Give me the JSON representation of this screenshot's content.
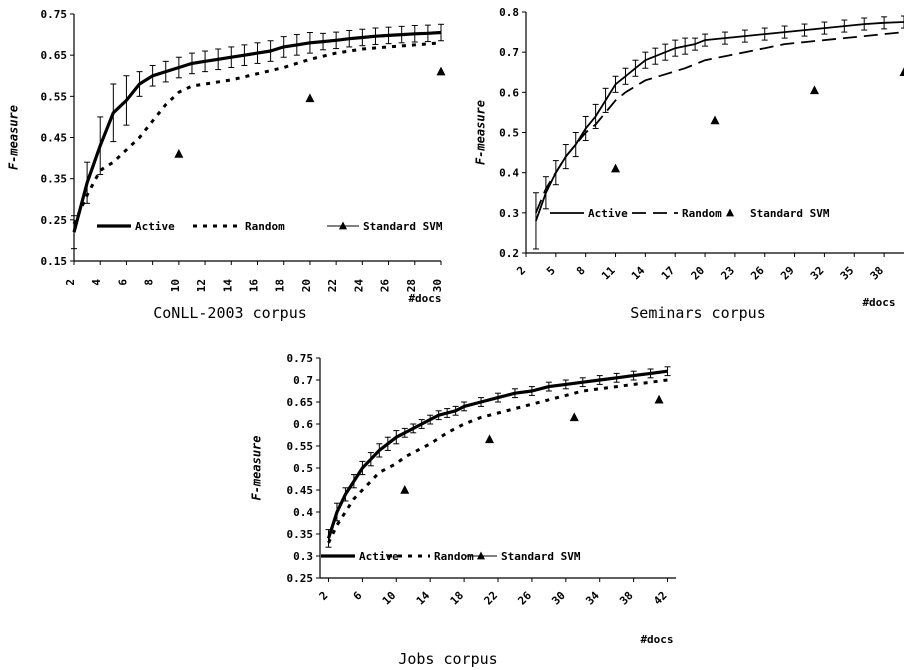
{
  "figure": {
    "background": "#ffffff",
    "ink": "#000000"
  },
  "chart_data": [
    {
      "type": "line",
      "caption": "CoNLL-2003 corpus",
      "ylabel": "F-measure",
      "xlabel": "#docs",
      "ylim": [
        0.15,
        0.75
      ],
      "yticks": [
        0.15,
        0.25,
        0.35,
        0.45,
        0.55,
        0.65,
        0.75
      ],
      "ytick_labels": [
        "0.15",
        "0.25",
        "0.35",
        "0.45",
        "0.55",
        "0.65",
        "0.75"
      ],
      "xlim": [
        2,
        30
      ],
      "xticks": [
        2,
        4,
        6,
        8,
        10,
        12,
        14,
        16,
        18,
        20,
        22,
        24,
        26,
        28,
        30
      ],
      "xtick_labels": [
        "2",
        "4",
        "6",
        "8",
        "10",
        "12",
        "14",
        "16",
        "18",
        "20",
        "22",
        "24",
        "26",
        "28",
        "30"
      ],
      "xtick_rotate": -90,
      "legend_position": "bottom",
      "series": [
        {
          "name": "Active",
          "style": "thick-solid",
          "x": [
            2,
            3,
            4,
            5,
            6,
            7,
            8,
            9,
            10,
            11,
            12,
            13,
            14,
            15,
            16,
            17,
            18,
            19,
            20,
            21,
            22,
            23,
            24,
            25,
            26,
            27,
            28,
            29,
            30
          ],
          "y": [
            0.22,
            0.34,
            0.43,
            0.51,
            0.54,
            0.58,
            0.6,
            0.61,
            0.62,
            0.63,
            0.635,
            0.64,
            0.645,
            0.65,
            0.655,
            0.66,
            0.67,
            0.675,
            0.68,
            0.683,
            0.686,
            0.69,
            0.693,
            0.696,
            0.698,
            0.7,
            0.702,
            0.703,
            0.705
          ],
          "err": [
            0.04,
            0.05,
            0.07,
            0.07,
            0.06,
            0.03,
            0.025,
            0.025,
            0.025,
            0.025,
            0.025,
            0.025,
            0.025,
            0.025,
            0.025,
            0.025,
            0.025,
            0.025,
            0.025,
            0.02,
            0.02,
            0.02,
            0.02,
            0.02,
            0.02,
            0.02,
            0.02,
            0.02,
            0.02
          ]
        },
        {
          "name": "Random",
          "style": "thick-dashed",
          "x": [
            2,
            3,
            4,
            5,
            6,
            7,
            8,
            9,
            10,
            11,
            12,
            14,
            16,
            18,
            20,
            22,
            24,
            26,
            28,
            30
          ],
          "y": [
            0.24,
            0.31,
            0.37,
            0.39,
            0.42,
            0.45,
            0.49,
            0.53,
            0.56,
            0.575,
            0.58,
            0.59,
            0.605,
            0.62,
            0.64,
            0.655,
            0.665,
            0.67,
            0.675,
            0.68
          ]
        },
        {
          "name": "Standard SVM",
          "style": "triangle",
          "x": [
            10,
            20,
            30
          ],
          "y": [
            0.41,
            0.545,
            0.61
          ]
        }
      ]
    },
    {
      "type": "line",
      "caption": "Seminars corpus",
      "ylabel": "F-measure",
      "xlabel": "#docs",
      "ylim": [
        0.2,
        0.8
      ],
      "yticks": [
        0.2,
        0.3,
        0.4,
        0.5,
        0.6,
        0.7,
        0.8
      ],
      "ytick_labels": [
        "0.2",
        "0.3",
        "0.4",
        "0.5",
        "0.6",
        "0.7",
        "0.8"
      ],
      "xlim": [
        2,
        40
      ],
      "xticks": [
        2,
        5,
        8,
        11,
        14,
        17,
        20,
        23,
        26,
        29,
        32,
        35,
        38
      ],
      "xtick_labels": [
        "2",
        "5",
        "8",
        "11",
        "14",
        "17",
        "20",
        "23",
        "26",
        "29",
        "32",
        "35",
        "38"
      ],
      "xtick_rotate": -45,
      "legend_position": "bottom",
      "series": [
        {
          "name": "Active",
          "style": "thin-solid",
          "x": [
            3,
            4,
            5,
            6,
            7,
            8,
            9,
            10,
            11,
            12,
            13,
            14,
            15,
            16,
            17,
            18,
            19,
            20,
            22,
            24,
            26,
            28,
            30,
            32,
            34,
            36,
            38,
            40
          ],
          "y": [
            0.28,
            0.35,
            0.4,
            0.44,
            0.47,
            0.51,
            0.54,
            0.58,
            0.62,
            0.64,
            0.66,
            0.68,
            0.69,
            0.7,
            0.71,
            0.715,
            0.72,
            0.73,
            0.735,
            0.74,
            0.745,
            0.75,
            0.755,
            0.76,
            0.765,
            0.77,
            0.773,
            0.775
          ],
          "err": [
            0.07,
            0.04,
            0.03,
            0.03,
            0.03,
            0.03,
            0.03,
            0.03,
            0.02,
            0.02,
            0.02,
            0.02,
            0.02,
            0.02,
            0.02,
            0.02,
            0.015,
            0.015,
            0.015,
            0.015,
            0.015,
            0.015,
            0.015,
            0.015,
            0.015,
            0.015,
            0.015,
            0.015
          ]
        },
        {
          "name": "Random",
          "style": "long-dashed",
          "x": [
            3,
            4,
            5,
            6,
            7,
            8,
            9,
            10,
            11,
            12,
            14,
            16,
            18,
            20,
            22,
            24,
            26,
            28,
            30,
            32,
            34,
            36,
            38,
            40
          ],
          "y": [
            0.3,
            0.36,
            0.4,
            0.44,
            0.47,
            0.5,
            0.52,
            0.55,
            0.58,
            0.6,
            0.63,
            0.645,
            0.66,
            0.68,
            0.69,
            0.7,
            0.71,
            0.72,
            0.725,
            0.73,
            0.735,
            0.74,
            0.745,
            0.75
          ]
        },
        {
          "name": "Standard SVM",
          "style": "triangle",
          "x": [
            11,
            21,
            31,
            40
          ],
          "y": [
            0.41,
            0.53,
            0.605,
            0.65
          ]
        }
      ]
    },
    {
      "type": "line",
      "caption": "Jobs corpus",
      "ylabel": "F-measure",
      "xlabel": "#docs",
      "ylim": [
        0.25,
        0.75
      ],
      "yticks": [
        0.25,
        0.3,
        0.35,
        0.4,
        0.45,
        0.5,
        0.55,
        0.6,
        0.65,
        0.7,
        0.75
      ],
      "ytick_labels": [
        "0.25",
        "0.3",
        "0.35",
        "0.4",
        "0.45",
        "0.5",
        "0.55",
        "0.6",
        "0.65",
        "0.7",
        "0.75"
      ],
      "xlim": [
        1,
        43
      ],
      "xticks": [
        2,
        6,
        10,
        14,
        18,
        22,
        26,
        30,
        34,
        38,
        42
      ],
      "xtick_labels": [
        "2",
        "6",
        "10",
        "14",
        "18",
        "22",
        "26",
        "30",
        "34",
        "38",
        "42"
      ],
      "xtick_rotate": -45,
      "legend_position": "bottom",
      "series": [
        {
          "name": "Active",
          "style": "thick-solid",
          "x": [
            2,
            3,
            4,
            5,
            6,
            7,
            8,
            9,
            10,
            11,
            12,
            13,
            14,
            15,
            16,
            17,
            18,
            20,
            22,
            24,
            26,
            28,
            30,
            32,
            34,
            36,
            38,
            40,
            42
          ],
          "y": [
            0.34,
            0.4,
            0.44,
            0.47,
            0.5,
            0.52,
            0.54,
            0.555,
            0.57,
            0.58,
            0.59,
            0.6,
            0.61,
            0.62,
            0.625,
            0.63,
            0.64,
            0.65,
            0.66,
            0.67,
            0.675,
            0.685,
            0.69,
            0.695,
            0.7,
            0.705,
            0.71,
            0.715,
            0.72
          ],
          "err": [
            0.02,
            0.02,
            0.015,
            0.015,
            0.015,
            0.015,
            0.015,
            0.015,
            0.015,
            0.01,
            0.01,
            0.01,
            0.01,
            0.01,
            0.01,
            0.01,
            0.01,
            0.01,
            0.01,
            0.01,
            0.01,
            0.01,
            0.01,
            0.01,
            0.01,
            0.01,
            0.01,
            0.01,
            0.01
          ]
        },
        {
          "name": "Random",
          "style": "thick-dashed",
          "x": [
            2,
            3,
            4,
            5,
            6,
            7,
            8,
            9,
            10,
            11,
            12,
            13,
            14,
            16,
            18,
            20,
            22,
            24,
            26,
            28,
            30,
            32,
            34,
            36,
            38,
            40,
            42
          ],
          "y": [
            0.33,
            0.37,
            0.4,
            0.43,
            0.45,
            0.47,
            0.49,
            0.5,
            0.51,
            0.525,
            0.535,
            0.545,
            0.555,
            0.58,
            0.6,
            0.615,
            0.625,
            0.635,
            0.645,
            0.655,
            0.665,
            0.675,
            0.68,
            0.685,
            0.69,
            0.695,
            0.7
          ]
        },
        {
          "name": "Standard SVM",
          "style": "triangle",
          "x": [
            11,
            21,
            31,
            41
          ],
          "y": [
            0.45,
            0.565,
            0.615,
            0.655
          ]
        }
      ]
    }
  ]
}
